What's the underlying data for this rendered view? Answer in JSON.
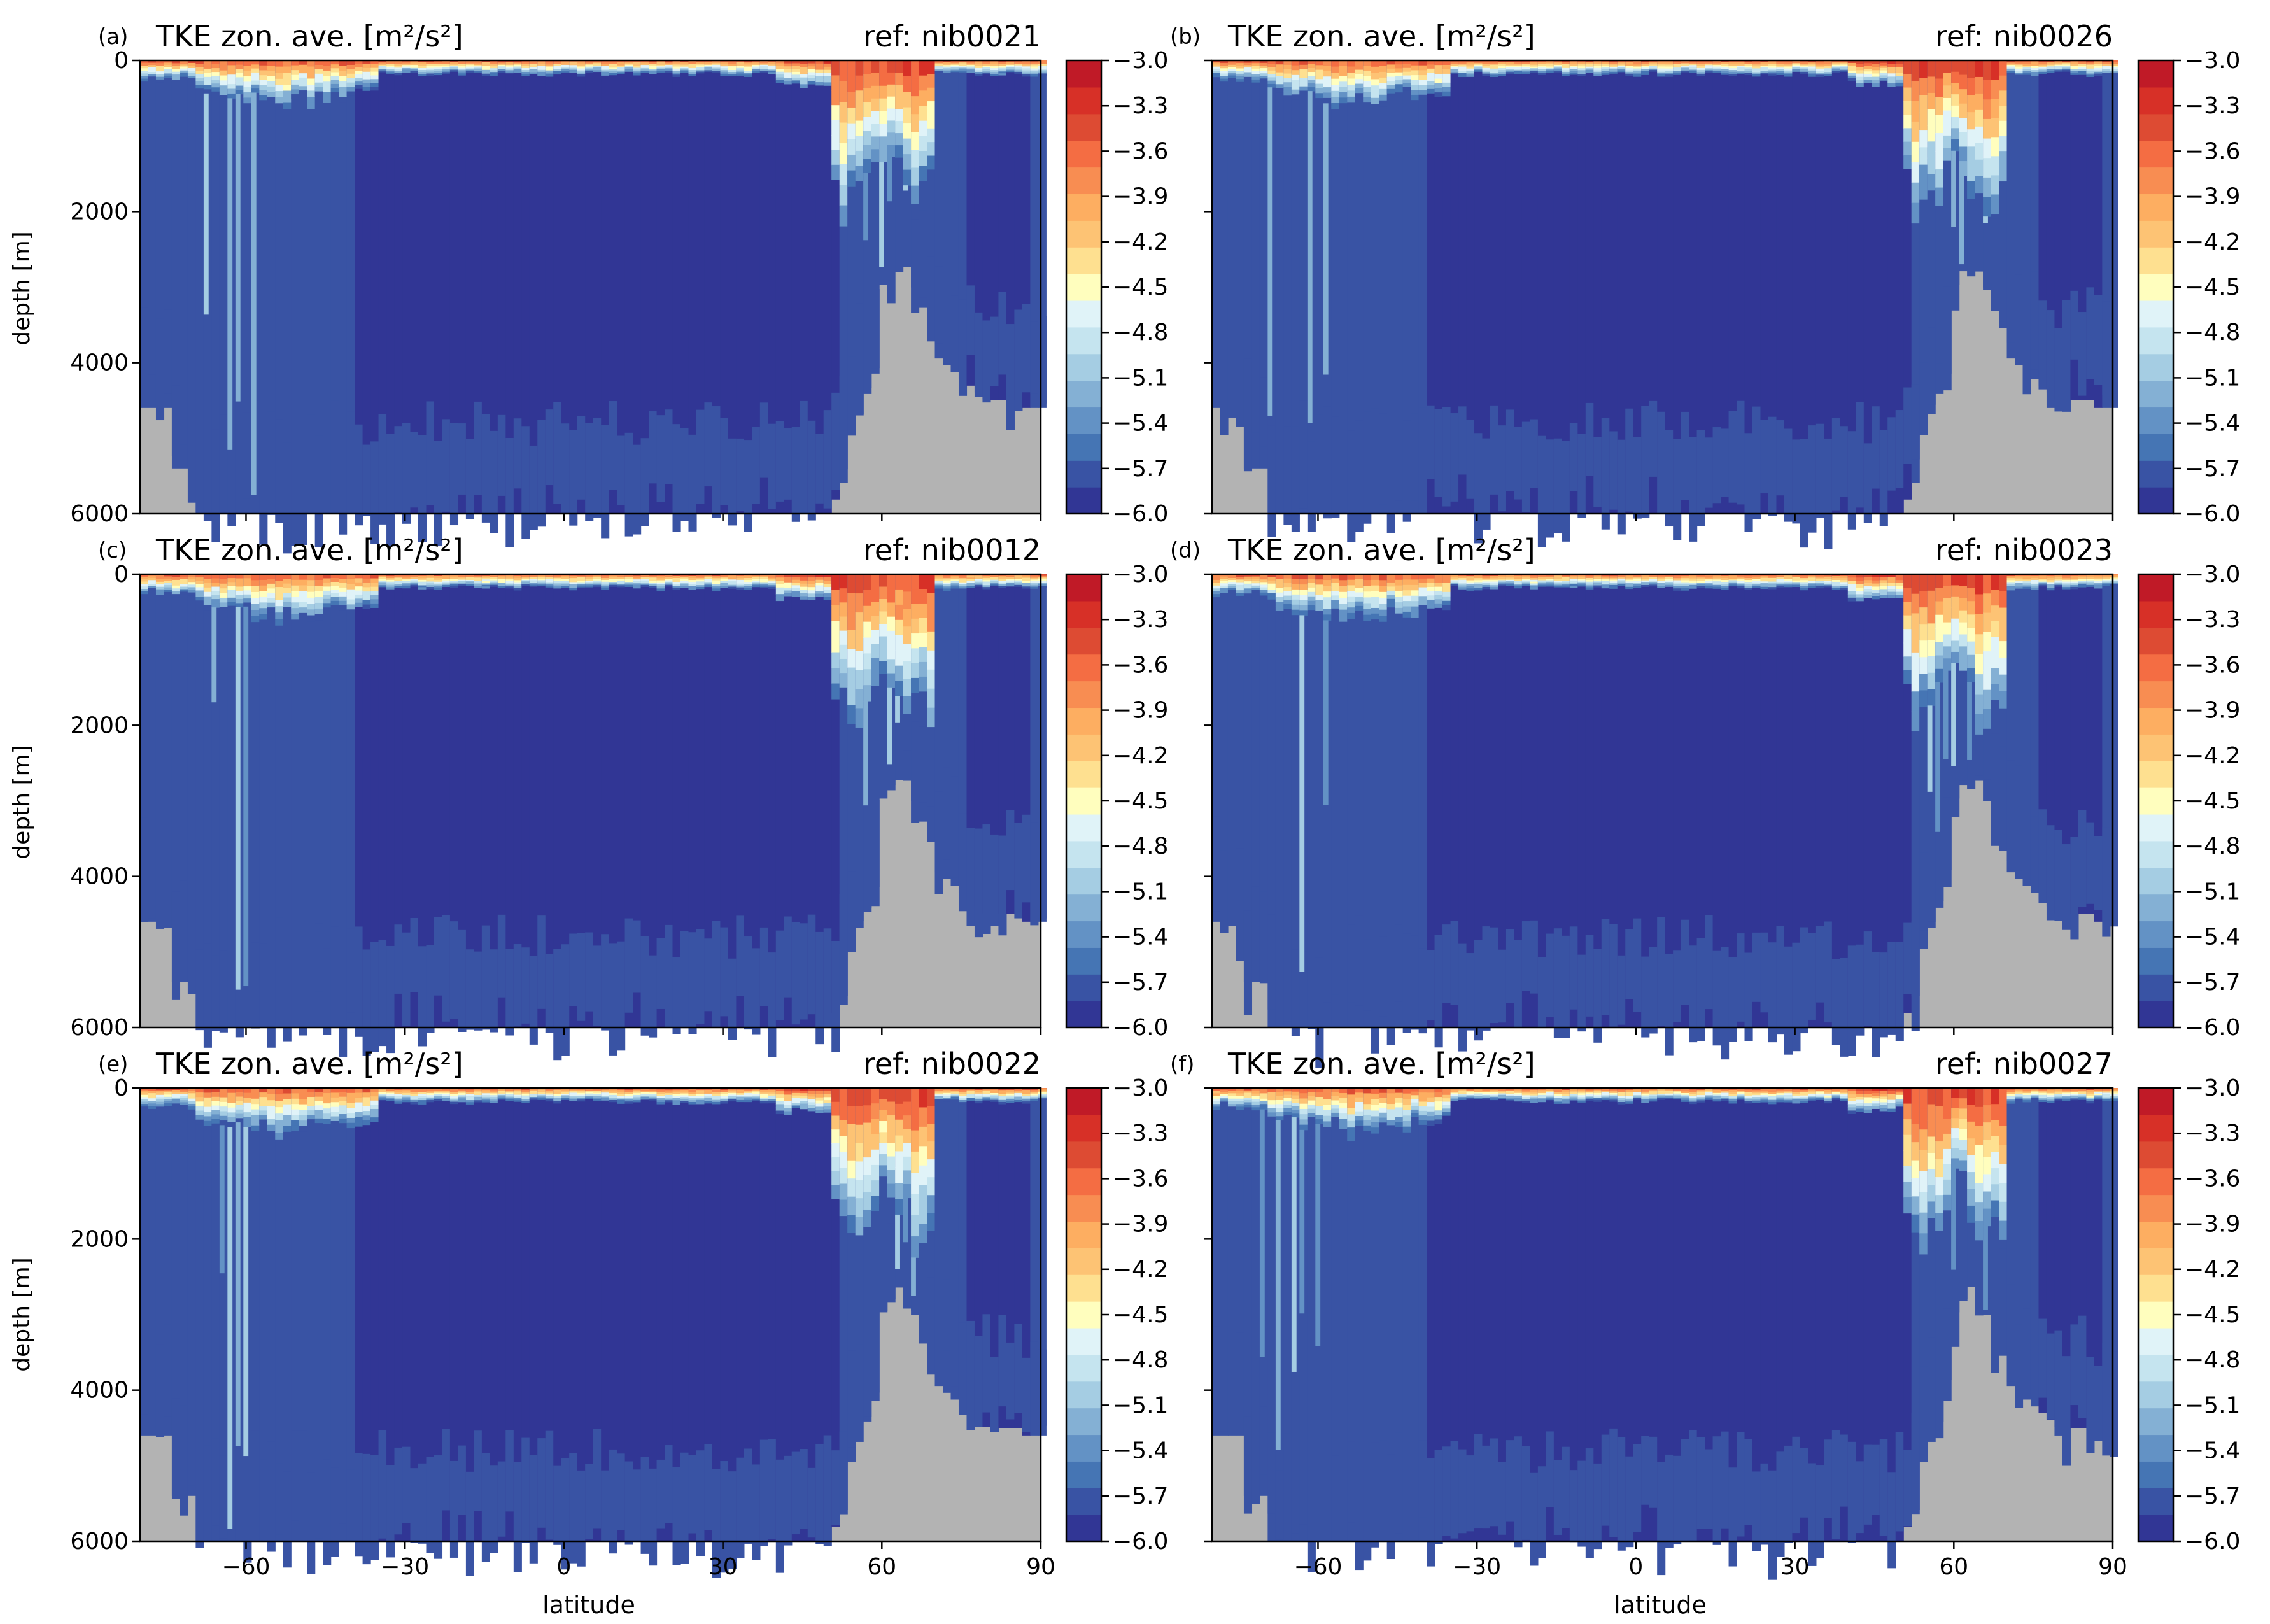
{
  "figure": {
    "xlabel": "latitude",
    "ylabel": "depth [m]",
    "depth_ticks": [
      "0",
      "2000",
      "4000",
      "6000"
    ],
    "lat_ticks": [
      "−60",
      "−30",
      "0",
      "30",
      "60",
      "90"
    ],
    "colorbar_ticks": [
      "−3.0",
      "−3.3",
      "−3.6",
      "−3.9",
      "−4.2",
      "−4.5",
      "−4.8",
      "−5.1",
      "−5.4",
      "−5.7",
      "−6.0"
    ]
  },
  "chart_data": [
    {
      "type": "heatmap",
      "panel": "(a)",
      "title": "TKE zon. ave. [m²/s²]",
      "ref": "ref: nib0021",
      "xlim": [
        -80,
        90
      ],
      "ylim": [
        6000,
        0
      ],
      "clim": [
        -6.0,
        -3.0
      ]
    },
    {
      "type": "heatmap",
      "panel": "(b)",
      "title": "TKE zon. ave. [m²/s²]",
      "ref": "ref: nib0026",
      "xlim": [
        -80,
        90
      ],
      "ylim": [
        6000,
        0
      ],
      "clim": [
        -6.0,
        -3.0
      ]
    },
    {
      "type": "heatmap",
      "panel": "(c)",
      "title": "TKE zon. ave. [m²/s²]",
      "ref": "ref: nib0012",
      "xlim": [
        -80,
        90
      ],
      "ylim": [
        6000,
        0
      ],
      "clim": [
        -6.0,
        -3.0
      ]
    },
    {
      "type": "heatmap",
      "panel": "(d)",
      "title": "TKE zon. ave. [m²/s²]",
      "ref": "ref: nib0023",
      "xlim": [
        -80,
        90
      ],
      "ylim": [
        6000,
        0
      ],
      "clim": [
        -6.0,
        -3.0
      ]
    },
    {
      "type": "heatmap",
      "panel": "(e)",
      "title": "TKE zon. ave. [m²/s²]",
      "ref": "ref: nib0022",
      "xlim": [
        -80,
        90
      ],
      "ylim": [
        6000,
        0
      ],
      "clim": [
        -6.0,
        -3.0
      ]
    },
    {
      "type": "heatmap",
      "panel": "(f)",
      "title": "TKE zon. ave. [m²/s²]",
      "ref": "ref: nib0027",
      "xlim": [
        -80,
        90
      ],
      "ylim": [
        6000,
        0
      ],
      "clim": [
        -6.0,
        -3.0
      ]
    }
  ],
  "colors": {
    "land": "#b3b3b3",
    "deep": "#313695",
    "interior": "#3953a4",
    "colormap": [
      "#313695",
      "#3953a4",
      "#4575b4",
      "#6392c5",
      "#84b0d4",
      "#a5cde3",
      "#c5e4ef",
      "#e0f3f8",
      "#fffebe",
      "#fee090",
      "#fdc374",
      "#fdae61",
      "#f88d52",
      "#f46d43",
      "#dd4b33",
      "#d73027",
      "#c01a27"
    ]
  }
}
